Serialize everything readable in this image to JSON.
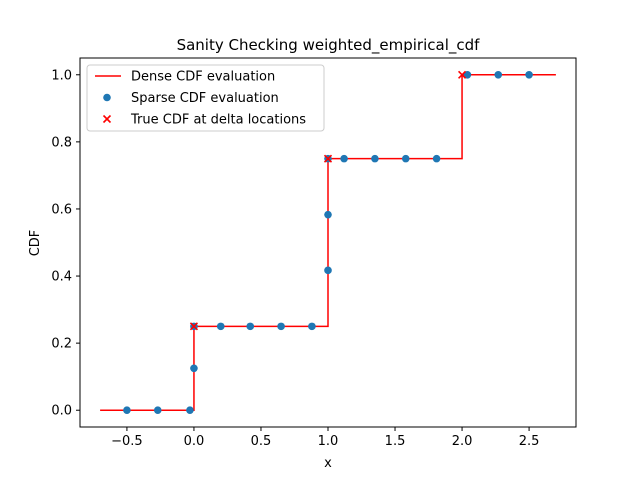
{
  "chart_data": {
    "type": "line",
    "title": "Sanity Checking weighted_empirical_cdf",
    "xlabel": "x",
    "ylabel": "CDF",
    "xlim": [
      -0.85,
      2.85
    ],
    "ylim": [
      -0.05,
      1.05
    ],
    "xticks": [
      -0.5,
      0.0,
      0.5,
      1.0,
      1.5,
      2.0,
      2.5
    ],
    "xtick_labels": [
      "−0.5",
      "0.0",
      "0.5",
      "1.0",
      "1.5",
      "2.0",
      "2.5"
    ],
    "yticks": [
      0.0,
      0.2,
      0.4,
      0.6,
      0.8,
      1.0
    ],
    "ytick_labels": [
      "0.0",
      "0.2",
      "0.4",
      "0.6",
      "0.8",
      "1.0"
    ],
    "grid": false,
    "legend_position": "top-left",
    "series": [
      {
        "name": "Dense CDF evaluation",
        "kind": "step-line",
        "color": "#ff0000",
        "x": [
          -0.7,
          0.0,
          0.0,
          1.0,
          1.0,
          2.0,
          2.0,
          2.7
        ],
        "y": [
          0.0,
          0.0,
          0.25,
          0.25,
          0.75,
          0.75,
          1.0,
          1.0
        ]
      },
      {
        "name": "Sparse CDF evaluation",
        "kind": "scatter",
        "marker": "circle",
        "color": "#1f77b4",
        "x": [
          -0.5,
          -0.27,
          -0.03,
          0.0,
          0.0,
          0.2,
          0.42,
          0.65,
          0.88,
          1.0,
          1.0,
          1.0,
          1.12,
          1.35,
          1.58,
          1.81,
          2.04,
          2.27,
          2.5
        ],
        "y": [
          0.0,
          0.0,
          0.0,
          0.125,
          0.25,
          0.25,
          0.25,
          0.25,
          0.25,
          0.417,
          0.583,
          0.75,
          0.75,
          0.75,
          0.75,
          0.75,
          1.0,
          1.0,
          1.0
        ]
      },
      {
        "name": "True CDF at delta locations",
        "kind": "scatter",
        "marker": "x",
        "color": "#ff0000",
        "x": [
          0.0,
          1.0,
          2.0
        ],
        "y": [
          0.25,
          0.75,
          1.0
        ]
      }
    ]
  }
}
